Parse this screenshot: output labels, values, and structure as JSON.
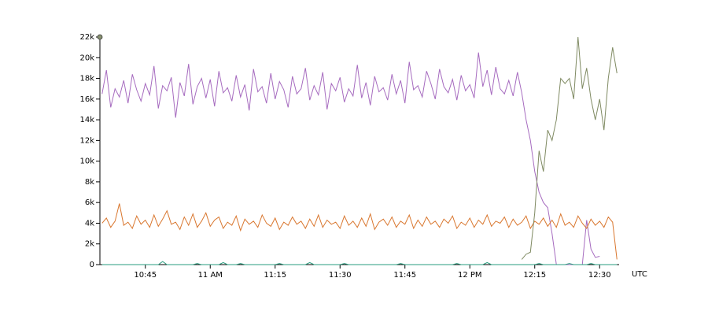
{
  "chart_data": {
    "type": "line",
    "xlabel": "UTC",
    "xlim": [
      634.5,
      754.5
    ],
    "xticks": [
      {
        "value": 645,
        "label": "10:45"
      },
      {
        "value": 660,
        "label": "11 AM"
      },
      {
        "value": 675,
        "label": "11:15"
      },
      {
        "value": 690,
        "label": "11:30"
      },
      {
        "value": 705,
        "label": "11:45"
      },
      {
        "value": 720,
        "label": "12 PM"
      },
      {
        "value": 735,
        "label": "12:15"
      },
      {
        "value": 750,
        "label": "12:30"
      }
    ],
    "ylim": [
      0,
      22000
    ],
    "yticks": [
      0,
      {
        "value": 2000,
        "label": "2k"
      },
      {
        "value": 4000,
        "label": "4k"
      },
      {
        "value": 6000,
        "label": "6k"
      },
      {
        "value": 8000,
        "label": "8k"
      },
      {
        "value": 10000,
        "label": "10k"
      },
      {
        "value": 12000,
        "label": "12k"
      },
      {
        "value": 14000,
        "label": "14k"
      },
      {
        "value": 16000,
        "label": "16k"
      },
      {
        "value": 18000,
        "label": "18k"
      },
      {
        "value": 20000,
        "label": "20k"
      },
      {
        "value": 22000,
        "label": "22k"
      }
    ],
    "x": [
      635,
      636,
      637,
      638,
      639,
      640,
      641,
      642,
      643,
      644,
      645,
      646,
      647,
      648,
      649,
      650,
      651,
      652,
      653,
      654,
      655,
      656,
      657,
      658,
      659,
      660,
      661,
      662,
      663,
      664,
      665,
      666,
      667,
      668,
      669,
      670,
      671,
      672,
      673,
      674,
      675,
      676,
      677,
      678,
      679,
      680,
      681,
      682,
      683,
      684,
      685,
      686,
      687,
      688,
      689,
      690,
      691,
      692,
      693,
      694,
      695,
      696,
      697,
      698,
      699,
      700,
      701,
      702,
      703,
      704,
      705,
      706,
      707,
      708,
      709,
      710,
      711,
      712,
      713,
      714,
      715,
      716,
      717,
      718,
      719,
      720,
      721,
      722,
      723,
      724,
      725,
      726,
      727,
      728,
      729,
      730,
      731,
      732,
      733,
      734,
      735,
      736,
      737,
      738,
      739,
      740,
      741,
      742,
      743,
      744,
      745,
      746,
      747,
      748,
      749,
      750,
      751,
      752,
      753,
      754
    ],
    "series": [
      {
        "color": "#a66bbf",
        "values": [
          16500,
          18800,
          15200,
          17000,
          16200,
          17800,
          15600,
          18400,
          16900,
          15800,
          17500,
          16400,
          19200,
          15100,
          17300,
          16800,
          18100,
          14200,
          17600,
          16300,
          19400,
          15500,
          17200,
          18000,
          16100,
          17900,
          15300,
          18700,
          16600,
          17100,
          15800,
          18300,
          16200,
          17400,
          14900,
          18900,
          16700,
          17200,
          15600,
          18500,
          16000,
          17700,
          16900,
          15200,
          18200,
          16500,
          17000,
          19000,
          15900,
          17300,
          16400,
          18600,
          15000,
          17500,
          16800,
          18100,
          15700,
          17000,
          16300,
          19300,
          16100,
          17600,
          15400,
          18200,
          16700,
          17100,
          15900,
          18400,
          16500,
          17800,
          15600,
          19600,
          16900,
          17300,
          16200,
          18700,
          17500,
          16000,
          18900,
          17200,
          16600,
          17900,
          15900,
          18300,
          16800,
          17400,
          16100,
          20500,
          17200,
          18800,
          16400,
          19100,
          17000,
          16500,
          17800,
          16300,
          18600,
          16600,
          14000,
          12000,
          9000,
          7000,
          6000,
          5500,
          3000,
          0,
          0,
          0,
          0,
          0,
          0,
          0,
          4300,
          1500,
          700,
          800,
          null,
          null,
          null,
          null
        ]
      },
      {
        "color": "#d9772f",
        "values": [
          4000,
          4500,
          3600,
          4200,
          5900,
          3800,
          4100,
          3500,
          4700,
          3900,
          4300,
          3600,
          4800,
          3700,
          4400,
          5200,
          3900,
          4100,
          3400,
          4600,
          3800,
          4900,
          3600,
          4200,
          5000,
          3700,
          4300,
          4600,
          3500,
          4100,
          3800,
          4700,
          3300,
          4400,
          3900,
          4200,
          3600,
          4800,
          4000,
          3700,
          4500,
          3400,
          4100,
          3800,
          4600,
          3900,
          4200,
          3500,
          4400,
          3700,
          4800,
          3600,
          4300,
          3900,
          4100,
          3500,
          4700,
          3800,
          4200,
          3600,
          4500,
          3700,
          4900,
          3400,
          4100,
          4400,
          3800,
          4600,
          3600,
          4200,
          3900,
          4800,
          3500,
          4300,
          3700,
          4600,
          3900,
          4200,
          3600,
          4400,
          4000,
          4700,
          3500,
          4100,
          3800,
          4500,
          3600,
          4300,
          3900,
          4800,
          3700,
          4200,
          4000,
          4600,
          3600,
          4400,
          3800,
          4100,
          4700,
          3500,
          4200,
          3900,
          4500,
          3700,
          4300,
          3600,
          4900,
          3800,
          4100,
          3600,
          4700,
          4000,
          3500,
          4400,
          3800,
          4200,
          3600,
          4600,
          4100,
          500
        ]
      },
      {
        "color": "#2a9d7f",
        "values": [
          0,
          0,
          0,
          0,
          0,
          0,
          0,
          0,
          0,
          0,
          0,
          0,
          0,
          0,
          300,
          0,
          0,
          0,
          0,
          0,
          0,
          0,
          100,
          0,
          0,
          0,
          0,
          0,
          200,
          0,
          0,
          0,
          100,
          0,
          0,
          0,
          0,
          0,
          0,
          0,
          0,
          100,
          0,
          0,
          0,
          0,
          0,
          0,
          200,
          0,
          0,
          0,
          0,
          0,
          0,
          0,
          100,
          0,
          0,
          0,
          0,
          0,
          0,
          0,
          0,
          0,
          0,
          0,
          0,
          100,
          0,
          0,
          0,
          0,
          0,
          0,
          0,
          0,
          0,
          0,
          0,
          0,
          100,
          0,
          0,
          0,
          0,
          0,
          0,
          200,
          0,
          0,
          0,
          0,
          0,
          0,
          0,
          0,
          0,
          0,
          0,
          100,
          0,
          0,
          0,
          0,
          0,
          0,
          100,
          0,
          0,
          0,
          0,
          100,
          0,
          0,
          0,
          0,
          0,
          0
        ]
      },
      {
        "color": "#7f8a62",
        "values": [
          null,
          null,
          null,
          null,
          null,
          null,
          null,
          null,
          null,
          null,
          null,
          null,
          null,
          null,
          null,
          null,
          null,
          null,
          null,
          null,
          null,
          null,
          null,
          null,
          null,
          null,
          null,
          null,
          null,
          null,
          null,
          null,
          null,
          null,
          null,
          null,
          null,
          null,
          null,
          null,
          null,
          null,
          null,
          null,
          null,
          null,
          null,
          null,
          null,
          null,
          null,
          null,
          null,
          null,
          null,
          null,
          null,
          null,
          null,
          null,
          null,
          null,
          null,
          null,
          null,
          null,
          null,
          null,
          null,
          null,
          null,
          null,
          null,
          null,
          null,
          null,
          null,
          null,
          null,
          null,
          null,
          null,
          null,
          null,
          null,
          null,
          null,
          null,
          null,
          null,
          null,
          null,
          null,
          null,
          null,
          null,
          null,
          500,
          1000,
          1200,
          5000,
          11000,
          9000,
          13000,
          12000,
          14000,
          18000,
          17500,
          18000,
          16000,
          22000,
          17000,
          19000,
          16000,
          14000,
          16000,
          13000,
          18000,
          21000,
          18500
        ]
      }
    ]
  }
}
